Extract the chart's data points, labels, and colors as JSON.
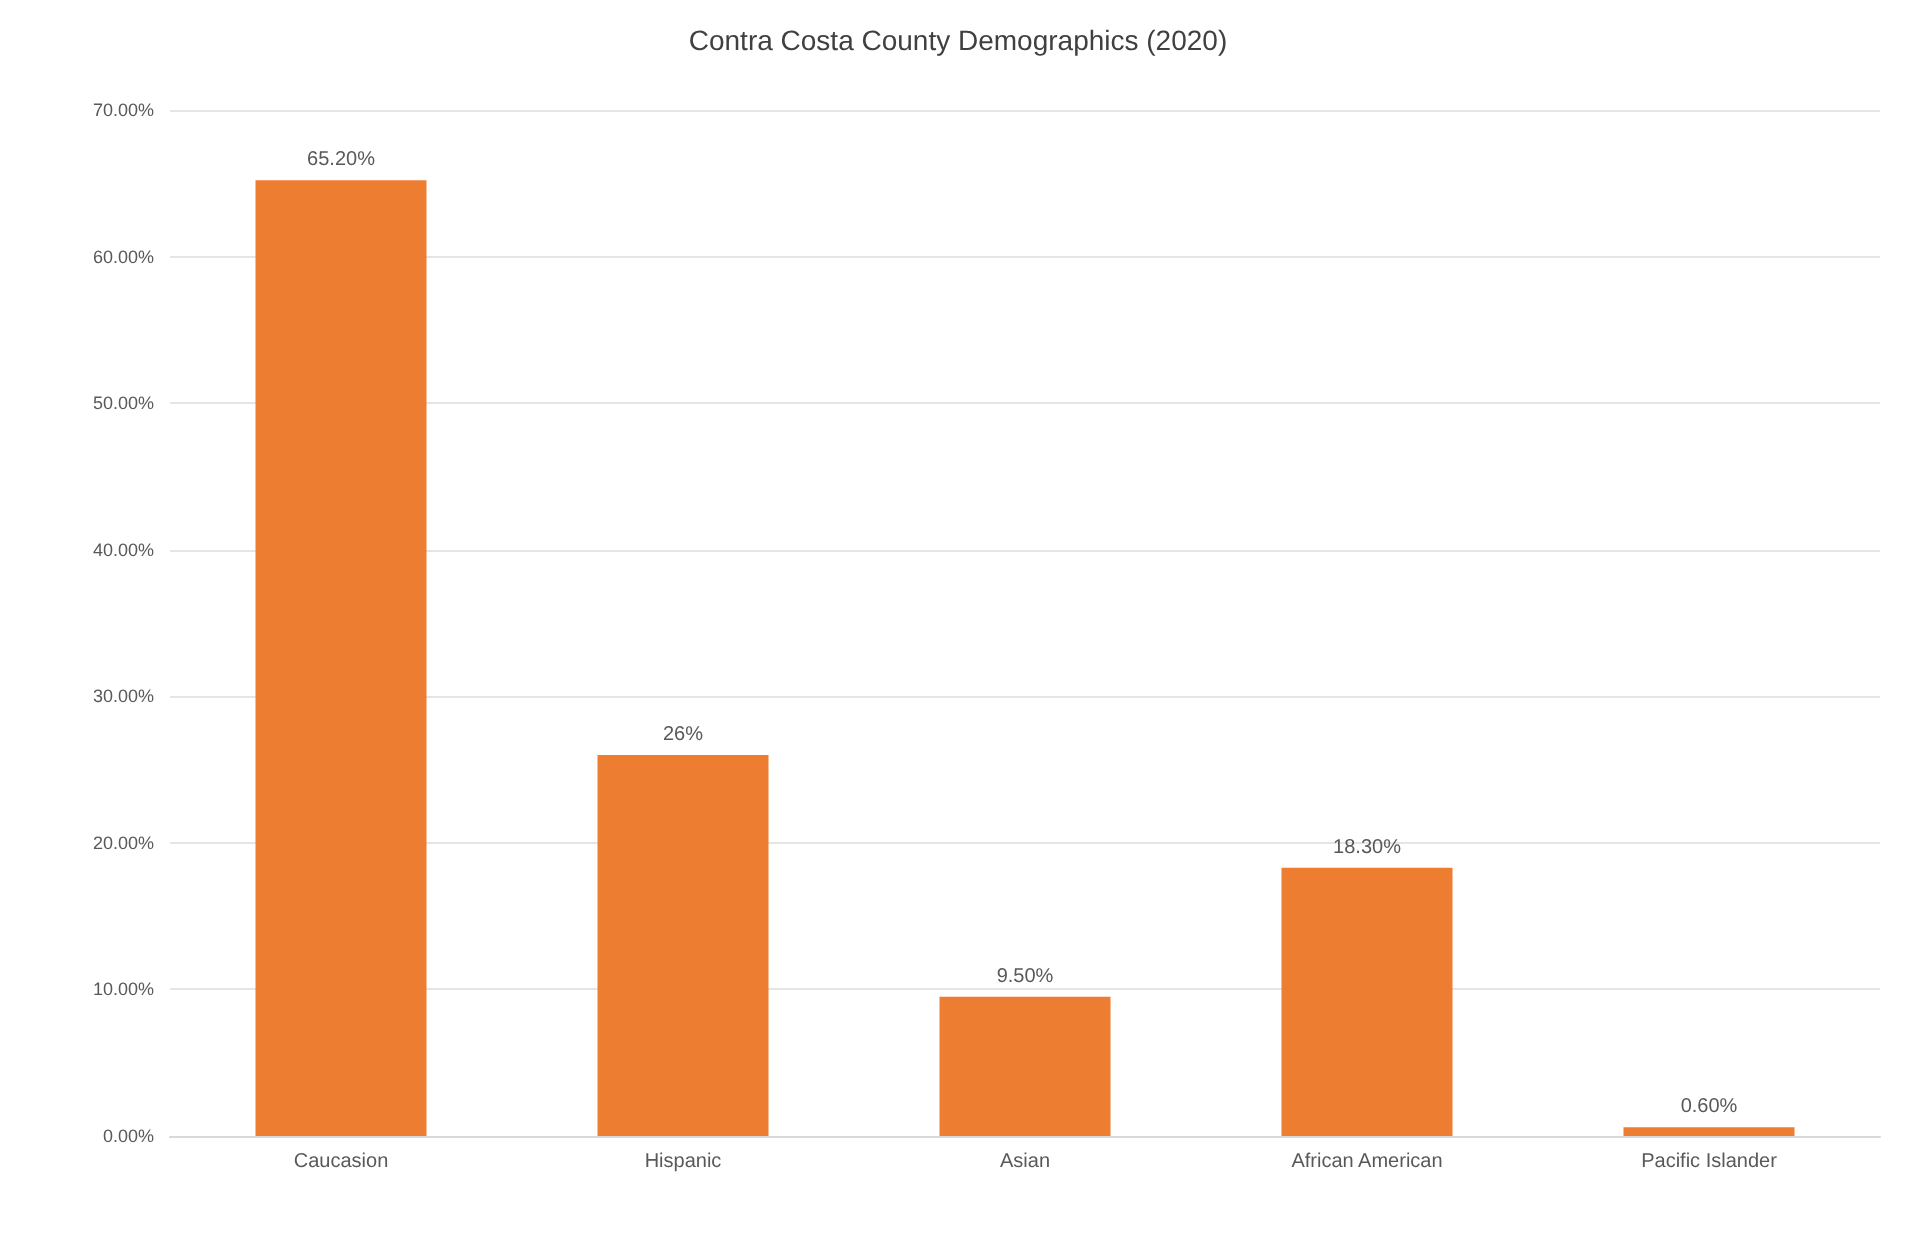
{
  "chart_data": {
    "type": "bar",
    "title": "Contra Costa County Demographics (2020)",
    "categories": [
      "Caucasion",
      "Hispanic",
      "Asian",
      "African American",
      "Pacific Islander"
    ],
    "values": [
      65.2,
      26,
      9.5,
      18.3,
      0.6
    ],
    "value_labels": [
      "65.20%",
      "26%",
      "9.50%",
      "18.30%",
      "0.60%"
    ],
    "color": "#ed7d31",
    "ylim": [
      0,
      70
    ],
    "yticks": [
      {
        "value": 0,
        "label": "0.00%"
      },
      {
        "value": 10,
        "label": "10.00%"
      },
      {
        "value": 20,
        "label": "20.00%"
      },
      {
        "value": 30,
        "label": "30.00%"
      },
      {
        "value": 40,
        "label": "40.00%"
      },
      {
        "value": 50,
        "label": "50.00%"
      },
      {
        "value": 60,
        "label": "60.00%"
      },
      {
        "value": 70,
        "label": "70.00%"
      }
    ],
    "grid": "y"
  }
}
